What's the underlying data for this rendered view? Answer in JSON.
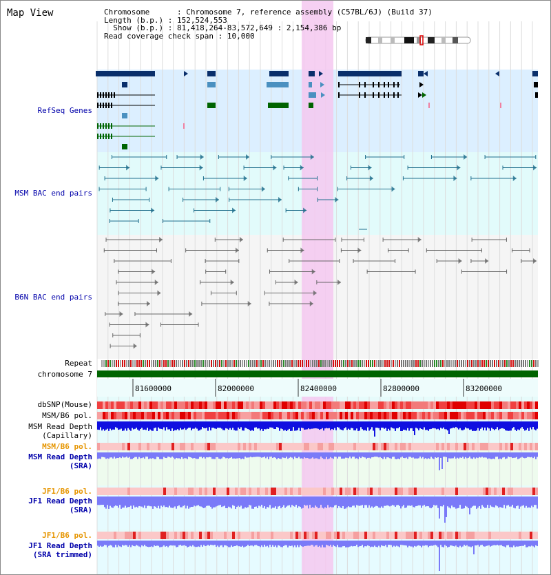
{
  "title": "Map View",
  "info": {
    "chromosome_label": "Chromosome",
    "chromosome_value": "Chromosome 7, reference assembly (C57BL/6J) (Build 37)",
    "length_label": "Length (b.p.)",
    "length_value": "152,524,553",
    "show_label": "Show (b.p.)",
    "show_value": "81,418,264-83,572,649 : 2,154,386 bp",
    "span_label": "Read coverage check span",
    "span_value": "10,000"
  },
  "tracks": {
    "refseq": "RefSeq Genes",
    "msm_bac": "MSM BAC end pairs",
    "b6n_bac": "B6N BAC end pairs",
    "repeat": "Repeat",
    "chromosome": "chromosome 7",
    "dbsnp": "dbSNP(Mouse)",
    "msm_b6_pol": "MSM/B6 pol.",
    "msm_depth_cap_1": "MSM Read Depth",
    "msm_depth_cap_2": "(Capillary)",
    "msm_b6_pol_2": "MSM/B6 pol.",
    "msm_depth_sra_1": "MSM Read Depth",
    "msm_depth_sra_2": "(SRA)",
    "jf1_b6_pol": "JF1/B6 pol.",
    "jf1_depth_sra_1": "JF1 Read Depth",
    "jf1_depth_sra_2": "(SRA)",
    "jf1_b6_pol_2": "JF1/B6 pol.",
    "jf1_depth_trim_1": "JF1 Read Depth",
    "jf1_depth_trim_2": "(SRA trimmed)"
  },
  "ruler": [
    "81600000",
    "82000000",
    "82400000",
    "82800000",
    "83200000"
  ],
  "colors": {
    "refseq_bg": "#dcefff",
    "msm_bg": "#e2fbfb",
    "b6n_bg": "#f5f5f5",
    "highlight": "#f5c8f0",
    "dark_gene": "#0a2f6b",
    "mid_gene": "#4a90c0",
    "green_gene": "#006400",
    "msm_feature": "#1f6e8c",
    "b6n_feature": "#666666",
    "msm_depth": "#1010e0",
    "sra_depth": "#7a7af8",
    "pol_red": "#e02020",
    "chromosome_bar": "#006400"
  }
}
